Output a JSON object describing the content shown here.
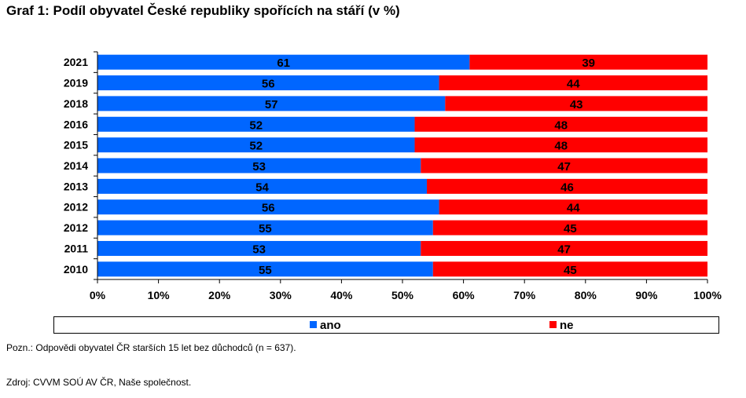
{
  "chart_data": {
    "type": "bar",
    "orientation": "horizontal",
    "stacked": true,
    "title": "Graf 1: Podíl obyvatel České republiky spořících na stáří (v %)",
    "categories": [
      "2021",
      "2019",
      "2018",
      "2016",
      "2015",
      "2014",
      "2013",
      "2012",
      "2012",
      "2011",
      "2010"
    ],
    "series": [
      {
        "name": "ano",
        "values": [
          61,
          56,
          57,
          52,
          52,
          53,
          54,
          56,
          55,
          53,
          55
        ],
        "color": "#0066FF"
      },
      {
        "name": "ne",
        "values": [
          39,
          44,
          43,
          48,
          48,
          47,
          46,
          44,
          45,
          47,
          45
        ],
        "color": "#FF0000"
      }
    ],
    "xlim": [
      0,
      100
    ],
    "xticks": [
      "0%",
      "10%",
      "20%",
      "30%",
      "40%",
      "50%",
      "60%",
      "70%",
      "80%",
      "90%",
      "100%"
    ],
    "grid": false,
    "legend_position": "bottom"
  },
  "note": "Pozn.: Odpovědi obyvatel ČR starších 15 let bez důchodců (n = 637).",
  "source": "Zdroj: CVVM SOÚ AV ČR, Naše společnost."
}
